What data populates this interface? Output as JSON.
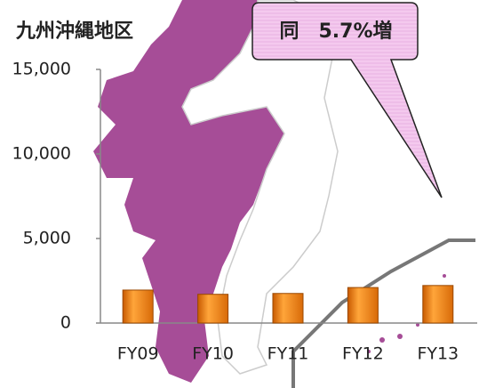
{
  "chart_data": {
    "type": "bar",
    "title": "九州沖縄地区",
    "annotation": "同　5.7%増",
    "categories": [
      "FY09",
      "FY10",
      "FY11",
      "FY12",
      "FY13"
    ],
    "values": [
      1950,
      1700,
      1750,
      2100,
      2220
    ],
    "color": "#f08a1e",
    "ylim": [
      0,
      15000
    ],
    "yticks": [
      0,
      {
        "value": 5000,
        "label": "5,000"
      },
      {
        "value": 10000,
        "label": "10,000"
      },
      {
        "value": 15000,
        "label": "15,000"
      }
    ]
  }
}
